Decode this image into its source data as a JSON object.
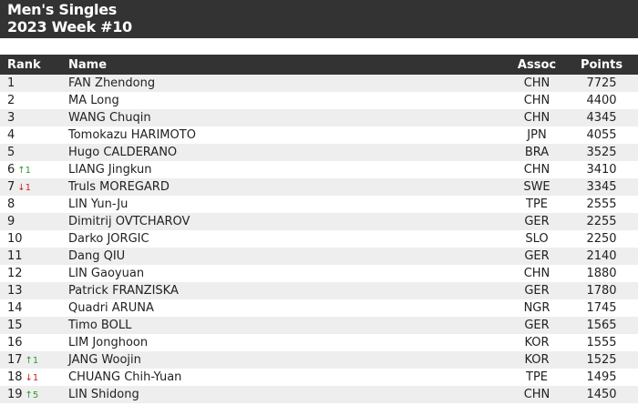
{
  "title": {
    "line1": "Men's Singles",
    "line2": "2023 Week #10"
  },
  "columns": {
    "rank": "Rank",
    "name": "Name",
    "assoc": "Assoc",
    "points": "Points"
  },
  "colors": {
    "header_bg": "#333333",
    "up": "#2a9a2a",
    "down": "#d02020"
  },
  "rows": [
    {
      "rank": "1",
      "move": "",
      "dir": "",
      "name": "FAN Zhendong",
      "assoc": "CHN",
      "points": "7725"
    },
    {
      "rank": "2",
      "move": "",
      "dir": "",
      "name": "MA Long",
      "assoc": "CHN",
      "points": "4400"
    },
    {
      "rank": "3",
      "move": "",
      "dir": "",
      "name": "WANG Chuqin",
      "assoc": "CHN",
      "points": "4345"
    },
    {
      "rank": "4",
      "move": "",
      "dir": "",
      "name": "Tomokazu HARIMOTO",
      "assoc": "JPN",
      "points": "4055"
    },
    {
      "rank": "5",
      "move": "",
      "dir": "",
      "name": "Hugo CALDERANO",
      "assoc": "BRA",
      "points": "3525"
    },
    {
      "rank": "6",
      "move": "↑1",
      "dir": "up",
      "name": "LIANG Jingkun",
      "assoc": "CHN",
      "points": "3410"
    },
    {
      "rank": "7",
      "move": "↓1",
      "dir": "down",
      "name": "Truls MOREGARD",
      "assoc": "SWE",
      "points": "3345"
    },
    {
      "rank": "8",
      "move": "",
      "dir": "",
      "name": "LIN Yun-Ju",
      "assoc": "TPE",
      "points": "2555"
    },
    {
      "rank": "9",
      "move": "",
      "dir": "",
      "name": "Dimitrij OVTCHAROV",
      "assoc": "GER",
      "points": "2255"
    },
    {
      "rank": "10",
      "move": "",
      "dir": "",
      "name": "Darko JORGIC",
      "assoc": "SLO",
      "points": "2250"
    },
    {
      "rank": "11",
      "move": "",
      "dir": "",
      "name": "Dang QIU",
      "assoc": "GER",
      "points": "2140"
    },
    {
      "rank": "12",
      "move": "",
      "dir": "",
      "name": "LIN Gaoyuan",
      "assoc": "CHN",
      "points": "1880"
    },
    {
      "rank": "13",
      "move": "",
      "dir": "",
      "name": "Patrick FRANZISKA",
      "assoc": "GER",
      "points": "1780"
    },
    {
      "rank": "14",
      "move": "",
      "dir": "",
      "name": "Quadri ARUNA",
      "assoc": "NGR",
      "points": "1745"
    },
    {
      "rank": "15",
      "move": "",
      "dir": "",
      "name": "Timo BOLL",
      "assoc": "GER",
      "points": "1565"
    },
    {
      "rank": "16",
      "move": "",
      "dir": "",
      "name": "LIM Jonghoon",
      "assoc": "KOR",
      "points": "1555"
    },
    {
      "rank": "17",
      "move": "↑1",
      "dir": "up",
      "name": "JANG Woojin",
      "assoc": "KOR",
      "points": "1525"
    },
    {
      "rank": "18",
      "move": "↓1",
      "dir": "down",
      "name": "CHUANG Chih-Yuan",
      "assoc": "TPE",
      "points": "1495"
    },
    {
      "rank": "19",
      "move": "↑5",
      "dir": "up",
      "name": "LIN Shidong",
      "assoc": "CHN",
      "points": "1450"
    }
  ]
}
